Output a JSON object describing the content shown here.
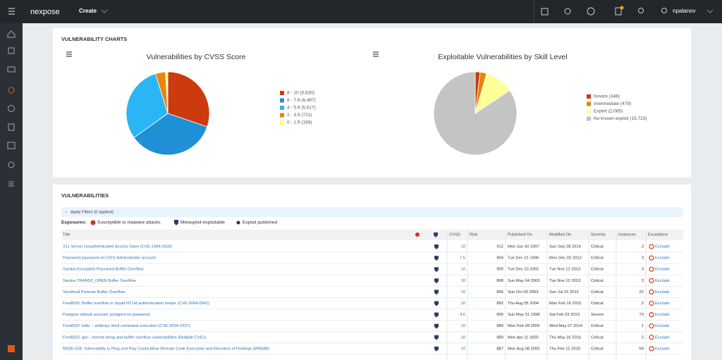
{
  "nav": {
    "brand": "nexpose",
    "create": "Create",
    "user": "npalanov"
  },
  "charts_section": {
    "title": "VULNERABILITY CHARTS"
  },
  "chart_data": [
    {
      "type": "pie",
      "title": "Vulnerabilities by CVSS Score",
      "categories": [
        "8 - 10 (5,630)",
        "6 - 7.9 (6,497)",
        "4 - 5.9 (5,617)",
        "2 - 3.9 (721)",
        "0 - 1.9 (169)"
      ],
      "values": [
        5630,
        6497,
        5617,
        721,
        169
      ],
      "colors": [
        "#cc3a0f",
        "#1f8fd6",
        "#2ab6f5",
        "#e8840f",
        "#ffff66"
      ]
    },
    {
      "type": "pie",
      "title": "Exploitable Vulnerabilities by Skill Level",
      "categories": [
        "Novice (348)",
        "Intermediate (478)",
        "Expert (2,085)",
        "No known exploit (15,723)"
      ],
      "values": [
        348,
        478,
        2085,
        15723
      ],
      "colors": [
        "#cc3a0f",
        "#e8840f",
        "#ffff99",
        "#c4c4c4"
      ]
    }
  ],
  "vulnerabilities": {
    "title": "VULNERABILITIES",
    "filters": "Apply Filters (0 applied)",
    "exposures": {
      "label": "Exposures:",
      "items": [
        "Susceptible to malware attacks",
        "Metasploit-exploitable",
        "Exploit published"
      ]
    },
    "columns": [
      "Title",
      "CVSS",
      "Risk",
      "Published On",
      "Modified On",
      "Severity",
      "Instances",
      "Exceptions"
    ],
    "rows": [
      [
        "X11 Server Unauthenticated Access Open (CVE-1999-0526)",
        10,
        912,
        "Mon Jun 30 1997",
        "Sun Sep 28 2014",
        "Critical",
        3,
        "Exclude"
      ],
      [
        "Password password on CIFS Administrator account",
        7.5,
        904,
        "Tue Dec 31 1996",
        "Mon Dec 02 2013",
        "Critical",
        3,
        "Exclude"
      ],
      [
        "Samba Encrypted Password Buffer Overflow",
        10,
        900,
        "Tue Dec 10 2002",
        "Tue Nov 12 2013",
        "Critical",
        3,
        "Exclude"
      ],
      [
        "Samba TRANS2_OPEN Buffer Overflow",
        10,
        898,
        "Sun May 04 2003",
        "Tue Nov 12 2013",
        "Critical",
        3,
        "Exclude"
      ],
      [
        "Sendmail Prescan Buffer Overflow",
        10,
        896,
        "Sun Oct 05 2003",
        "Sun Jul 15 2012",
        "Critical",
        22,
        "Exclude"
      ],
      [
        "FreeBSD: Buffer overflow in Squid NTLM authentication helper (CVE-2004-0541)",
        10,
        892,
        "Thu Aug 05 2004",
        "Mon Feb 16 2015",
        "Critical",
        2,
        "Exclude"
      ],
      [
        "Postgres default account: postgres:no password",
        4.6,
        890,
        "Sun May 31 1998",
        "Sat Feb 23 2013",
        "Severe",
        73,
        "Exclude"
      ],
      [
        "FreeBSD: twiki -- arbitrary shell command execution (CVE-2004-1037)",
        10,
        889,
        "Mon Feb 28 2005",
        "Wed May 07 2014",
        "Critical",
        1,
        "Exclude"
      ],
      [
        "FreeBSD: gld -- format string and buffer overflow vulnerabilities (Multiple CVEs)",
        10,
        889,
        "Mon Apr 11 2005",
        "Thu May 26 2016",
        "Critical",
        2,
        "Exclude"
      ],
      [
        "MS05-039: Vulnerability in Plug and Play Could Allow Remote Code Execution and Elevation of Privilege (899588)",
        10,
        887,
        "Mon Aug 08 2005",
        "Thu Feb 12 2015",
        "Critical",
        69,
        "Exclude"
      ]
    ]
  }
}
